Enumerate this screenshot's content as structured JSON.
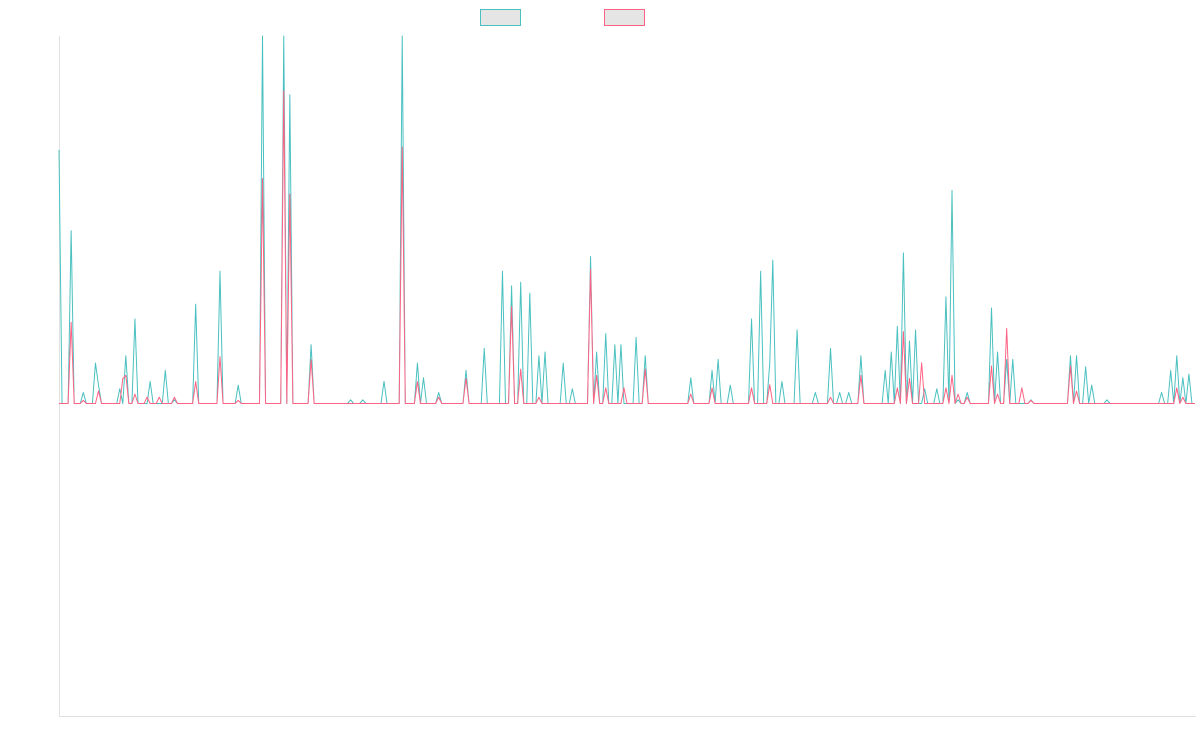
{
  "chart_data": {
    "type": "line",
    "title": "",
    "xlabel": "",
    "ylabel": "",
    "grid": false,
    "legend": {
      "position": "top-center",
      "entries": [
        "",
        ""
      ]
    },
    "x_count": 375,
    "ylim": [
      -1.0,
      1.0
    ],
    "colors": {
      "series_1": "#4bc0c0",
      "series_2": "#ff6384",
      "legend_fill": "#e5e5e5",
      "axis": "#e0e0e0"
    },
    "series": [
      {
        "sign": 1,
        "peaks": [
          [
            0,
            0.69
          ],
          [
            4,
            0.47
          ],
          [
            8,
            0.03
          ],
          [
            12,
            0.11
          ],
          [
            13,
            0.05
          ],
          [
            20,
            0.04
          ],
          [
            22,
            0.13
          ],
          [
            25,
            0.23
          ],
          [
            30,
            0.06
          ],
          [
            35,
            0.09
          ],
          [
            38,
            0.01
          ],
          [
            45,
            0.27
          ],
          [
            53,
            0.36
          ],
          [
            59,
            0.05
          ],
          [
            67,
            1.0
          ],
          [
            74,
            1.0
          ],
          [
            76,
            0.84
          ],
          [
            83,
            0.16
          ],
          [
            96,
            0.01
          ],
          [
            100,
            0.01
          ],
          [
            107,
            0.06
          ],
          [
            113,
            1.0
          ],
          [
            118,
            0.11
          ],
          [
            120,
            0.07
          ],
          [
            125,
            0.03
          ],
          [
            134,
            0.09
          ],
          [
            140,
            0.15
          ],
          [
            146,
            0.36
          ],
          [
            149,
            0.32
          ],
          [
            152,
            0.33
          ],
          [
            155,
            0.3
          ],
          [
            158,
            0.13
          ],
          [
            160,
            0.14
          ],
          [
            166,
            0.11
          ],
          [
            169,
            0.04
          ],
          [
            175,
            0.4
          ],
          [
            177,
            0.14
          ],
          [
            180,
            0.19
          ],
          [
            183,
            0.16
          ],
          [
            185,
            0.16
          ],
          [
            190,
            0.18
          ],
          [
            193,
            0.13
          ],
          [
            208,
            0.07
          ],
          [
            215,
            0.09
          ],
          [
            217,
            0.12
          ],
          [
            221,
            0.05
          ],
          [
            228,
            0.23
          ],
          [
            231,
            0.36
          ],
          [
            234,
            0.11
          ],
          [
            235,
            0.39
          ],
          [
            238,
            0.06
          ],
          [
            243,
            0.2
          ],
          [
            249,
            0.03
          ],
          [
            254,
            0.15
          ],
          [
            257,
            0.03
          ],
          [
            260,
            0.03
          ],
          [
            264,
            0.13
          ],
          [
            272,
            0.09
          ],
          [
            274,
            0.14
          ],
          [
            276,
            0.21
          ],
          [
            278,
            0.41
          ],
          [
            280,
            0.17
          ],
          [
            282,
            0.2
          ],
          [
            285,
            0.04
          ],
          [
            289,
            0.04
          ],
          [
            292,
            0.29
          ],
          [
            294,
            0.58
          ],
          [
            296,
            0.01
          ],
          [
            299,
            0.03
          ],
          [
            307,
            0.26
          ],
          [
            309,
            0.14
          ],
          [
            312,
            0.12
          ],
          [
            314,
            0.12
          ],
          [
            320,
            0.01
          ],
          [
            333,
            0.13
          ],
          [
            335,
            0.13
          ],
          [
            338,
            0.1
          ],
          [
            340,
            0.05
          ],
          [
            345,
            0.01
          ],
          [
            363,
            0.03
          ],
          [
            366,
            0.09
          ],
          [
            368,
            0.13
          ],
          [
            370,
            0.07
          ],
          [
            372,
            0.08
          ]
        ]
      },
      {
        "sign": -1,
        "peaks": [
          [
            4,
            0.26
          ],
          [
            8,
            0.01
          ],
          [
            13,
            0.04
          ],
          [
            21,
            0.08
          ],
          [
            22,
            0.09
          ],
          [
            25,
            0.03
          ],
          [
            29,
            0.02
          ],
          [
            33,
            0.02
          ],
          [
            38,
            0.02
          ],
          [
            45,
            0.07
          ],
          [
            53,
            0.15
          ],
          [
            59,
            0.01
          ],
          [
            67,
            0.72
          ],
          [
            74,
            1.0
          ],
          [
            76,
            0.67
          ],
          [
            83,
            0.14
          ],
          [
            113,
            0.82
          ],
          [
            118,
            0.07
          ],
          [
            125,
            0.02
          ],
          [
            134,
            0.08
          ],
          [
            149,
            0.31
          ],
          [
            152,
            0.11
          ],
          [
            158,
            0.02
          ],
          [
            175,
            0.43
          ],
          [
            177,
            0.09
          ],
          [
            180,
            0.05
          ],
          [
            186,
            0.05
          ],
          [
            193,
            0.11
          ],
          [
            208,
            0.03
          ],
          [
            215,
            0.05
          ],
          [
            228,
            0.05
          ],
          [
            234,
            0.06
          ],
          [
            254,
            0.02
          ],
          [
            264,
            0.09
          ],
          [
            276,
            0.05
          ],
          [
            278,
            0.23
          ],
          [
            280,
            0.08
          ],
          [
            284,
            0.13
          ],
          [
            292,
            0.05
          ],
          [
            294,
            0.09
          ],
          [
            296,
            0.03
          ],
          [
            299,
            0.02
          ],
          [
            307,
            0.12
          ],
          [
            309,
            0.03
          ],
          [
            312,
            0.24
          ],
          [
            317,
            0.05
          ],
          [
            320,
            0.01
          ],
          [
            333,
            0.12
          ],
          [
            335,
            0.04
          ],
          [
            368,
            0.05
          ],
          [
            370,
            0.02
          ]
        ]
      }
    ]
  }
}
